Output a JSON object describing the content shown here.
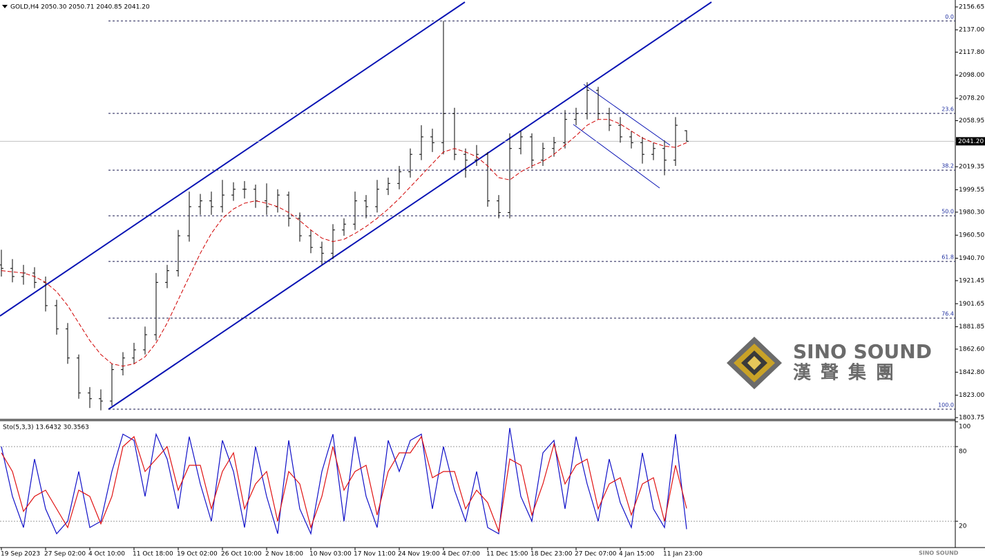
{
  "chart_data": [
    {
      "type": "ohlc",
      "title": "GOLD,H4  2050.30 2050.71 2040.85 2041.20",
      "color": "#000000",
      "categories": [
        "19 Sep 2023",
        null,
        null,
        null,
        "27 Sep 02:00",
        null,
        null,
        null,
        "4 Oct 10:00",
        null,
        null,
        null,
        "11 Oct 18:00",
        null,
        null,
        null,
        "19 Oct 02:00",
        null,
        null,
        null,
        "26 Oct 10:00",
        null,
        null,
        null,
        "2 Nov 18:00",
        null,
        null,
        null,
        "10 Nov 03:00",
        null,
        null,
        null,
        "17 Nov 11:00",
        null,
        null,
        null,
        "24 Nov 19:00",
        null,
        null,
        null,
        "4 Dec 07:00",
        null,
        null,
        null,
        "11 Dec 15:00",
        null,
        null,
        null,
        "18 Dec 23:00",
        null,
        null,
        null,
        "27 Dec 07:00",
        null,
        null,
        null,
        "4 Jan 15:00",
        null,
        null,
        null,
        "11 Jan 23:00",
        null,
        null
      ],
      "open": [
        1935,
        1932,
        1925,
        1928,
        1920,
        1900,
        1880,
        1855,
        1825,
        1820,
        1818,
        1845,
        1855,
        1862,
        1875,
        1920,
        1930,
        1960,
        1985,
        1990,
        1985,
        1995,
        2000,
        2000,
        1990,
        1985,
        1995,
        1975,
        1960,
        1950,
        1945,
        1965,
        1970,
        1990,
        1985,
        2000,
        2005,
        2015,
        2030,
        2045,
        2040,
        2065,
        2030,
        2025,
        2030,
        1990,
        1980,
        2035,
        2045,
        2025,
        2035,
        2040,
        2060,
        2065,
        2085,
        2065,
        2055,
        2045,
        2040,
        2030,
        2035,
        2025,
        2050.3
      ],
      "high": [
        1948,
        1940,
        1935,
        1933,
        1925,
        1905,
        1885,
        1858,
        1830,
        1828,
        1850,
        1860,
        1868,
        1882,
        1928,
        1935,
        1965,
        1998,
        1996,
        1998,
        2008,
        2006,
        2007,
        2004,
        2005,
        2000,
        1998,
        1980,
        1965,
        1955,
        1970,
        1975,
        1998,
        1995,
        2008,
        2010,
        2020,
        2035,
        2055,
        2052,
        2144.6,
        2070,
        2035,
        2038,
        2032,
        1995,
        2048,
        2050,
        2048,
        2040,
        2045,
        2068,
        2070,
        2092,
        2088,
        2070,
        2062,
        2050,
        2045,
        2040,
        2042,
        2062,
        2050.71
      ],
      "low": [
        1925,
        1920,
        1918,
        1915,
        1895,
        1875,
        1850,
        1820,
        1812,
        1810,
        1814,
        1840,
        1850,
        1858,
        1870,
        1915,
        1925,
        1955,
        1978,
        1978,
        1980,
        1990,
        1992,
        1984,
        1978,
        1980,
        1968,
        1955,
        1945,
        1935,
        1940,
        1960,
        1965,
        1975,
        1980,
        1995,
        2000,
        2010,
        2025,
        2032,
        2030,
        2025,
        2010,
        2020,
        1985,
        1975,
        1975,
        2030,
        2018,
        2020,
        2028,
        2035,
        2055,
        2060,
        2060,
        2050,
        2040,
        2035,
        2022,
        2025,
        2012,
        2020,
        2040.85
      ],
      "close": [
        1932,
        1925,
        1928,
        1920,
        1900,
        1880,
        1855,
        1825,
        1820,
        1818,
        1845,
        1855,
        1862,
        1875,
        1920,
        1930,
        1960,
        1985,
        1990,
        1985,
        1995,
        2000,
        2000,
        1990,
        1985,
        1995,
        1975,
        1960,
        1950,
        1945,
        1965,
        1970,
        1990,
        1985,
        2000,
        2005,
        2015,
        2030,
        2045,
        2040,
        2065,
        2030,
        2025,
        2030,
        1990,
        1980,
        2035,
        2045,
        2025,
        2035,
        2040,
        2060,
        2065,
        2085,
        2065,
        2055,
        2045,
        2040,
        2030,
        2035,
        2025,
        2055,
        2041.2
      ],
      "overlay": {
        "color": "#d00000",
        "values": [
          1930,
          1929,
          1928,
          1925,
          1920,
          1912,
          1900,
          1885,
          1870,
          1858,
          1850,
          1848,
          1850,
          1856,
          1868,
          1885,
          1905,
          1925,
          1945,
          1962,
          1975,
          1983,
          1988,
          1990,
          1988,
          1985,
          1980,
          1973,
          1965,
          1958,
          1955,
          1957,
          1962,
          1968,
          1975,
          1983,
          1992,
          2002,
          2012,
          2022,
          2032,
          2035,
          2032,
          2028,
          2020,
          2010,
          2008,
          2015,
          2020,
          2024,
          2030,
          2038,
          2046,
          2055,
          2060,
          2060,
          2056,
          2050,
          2044,
          2040,
          2037,
          2036,
          2040
        ]
      },
      "ylim": [
        1803.2,
        2162.6
      ],
      "yticks": [
        {
          "value": 2156.65,
          "label": "2156.65"
        },
        {
          "value": 2137,
          "label": "2137.00"
        },
        {
          "value": 2117.8,
          "label": "2117.80"
        },
        {
          "value": 2098,
          "label": "2098.00"
        },
        {
          "value": 2078.2,
          "label": "2078.20"
        },
        {
          "value": 2058.95,
          "label": "2058.95"
        },
        {
          "value": 2019.35,
          "label": "2019.35"
        },
        {
          "value": 1999.55,
          "label": "1999.55"
        },
        {
          "value": 1980.3,
          "label": "1980.30"
        },
        {
          "value": 1960.5,
          "label": "1960.50"
        },
        {
          "value": 1940.7,
          "label": "1940.70"
        },
        {
          "value": 1921.45,
          "label": "1921.45"
        },
        {
          "value": 1901.65,
          "label": "1901.65"
        },
        {
          "value": 1881.85,
          "label": "1881.85"
        },
        {
          "value": 1862.6,
          "label": "1862.60"
        },
        {
          "value": 1842.8,
          "label": "1842.80"
        },
        {
          "value": 1823,
          "label": "1823.00"
        },
        {
          "value": 1803.75,
          "label": "1803.75"
        }
      ],
      "fib_levels": [
        {
          "value": 2144.6,
          "label": "0.0"
        },
        {
          "value": 2065.2,
          "label": "23.6"
        },
        {
          "value": 2016.4,
          "label": "38.2"
        },
        {
          "value": 1977.2,
          "label": "50.0"
        },
        {
          "value": 1938.0,
          "label": "61.8"
        },
        {
          "value": 1889.3,
          "label": "76.4"
        },
        {
          "value": 1811.0,
          "label": "100.0"
        }
      ],
      "last_price": {
        "value": 2041.2,
        "label": "2041.20"
      }
    },
    {
      "type": "line",
      "title": "Sto(5,3,3) 13.6432 30.3563",
      "series": [
        {
          "color": "#1010c8",
          "values": [
            80,
            40,
            15,
            70,
            30,
            10,
            20,
            60,
            15,
            20,
            60,
            90,
            85,
            40,
            90,
            70,
            30,
            88,
            50,
            20,
            85,
            60,
            15,
            80,
            40,
            10,
            85,
            30,
            10,
            60,
            90,
            20,
            88,
            40,
            15,
            85,
            60,
            85,
            90,
            30,
            80,
            45,
            20,
            60,
            15,
            10,
            95,
            40,
            20,
            75,
            85,
            30,
            88,
            50,
            20,
            70,
            35,
            15,
            75,
            30,
            15,
            90,
            13.6432
          ]
        },
        {
          "color": "#e01010",
          "values": [
            75,
            60,
            28,
            40,
            45,
            30,
            15,
            45,
            40,
            18,
            40,
            80,
            88,
            60,
            70,
            80,
            45,
            65,
            65,
            30,
            60,
            75,
            30,
            50,
            60,
            20,
            60,
            50,
            15,
            40,
            80,
            45,
            60,
            65,
            25,
            60,
            75,
            75,
            88,
            55,
            60,
            60,
            30,
            45,
            35,
            12,
            70,
            65,
            25,
            50,
            82,
            50,
            65,
            70,
            30,
            50,
            55,
            25,
            50,
            55,
            20,
            65,
            30.3563
          ]
        }
      ],
      "ylim": [
        0,
        100
      ],
      "yticks": [
        100,
        80,
        20
      ]
    }
  ],
  "logo": {
    "name": "SINO SOUND",
    "chinese": "漢聲集團"
  }
}
